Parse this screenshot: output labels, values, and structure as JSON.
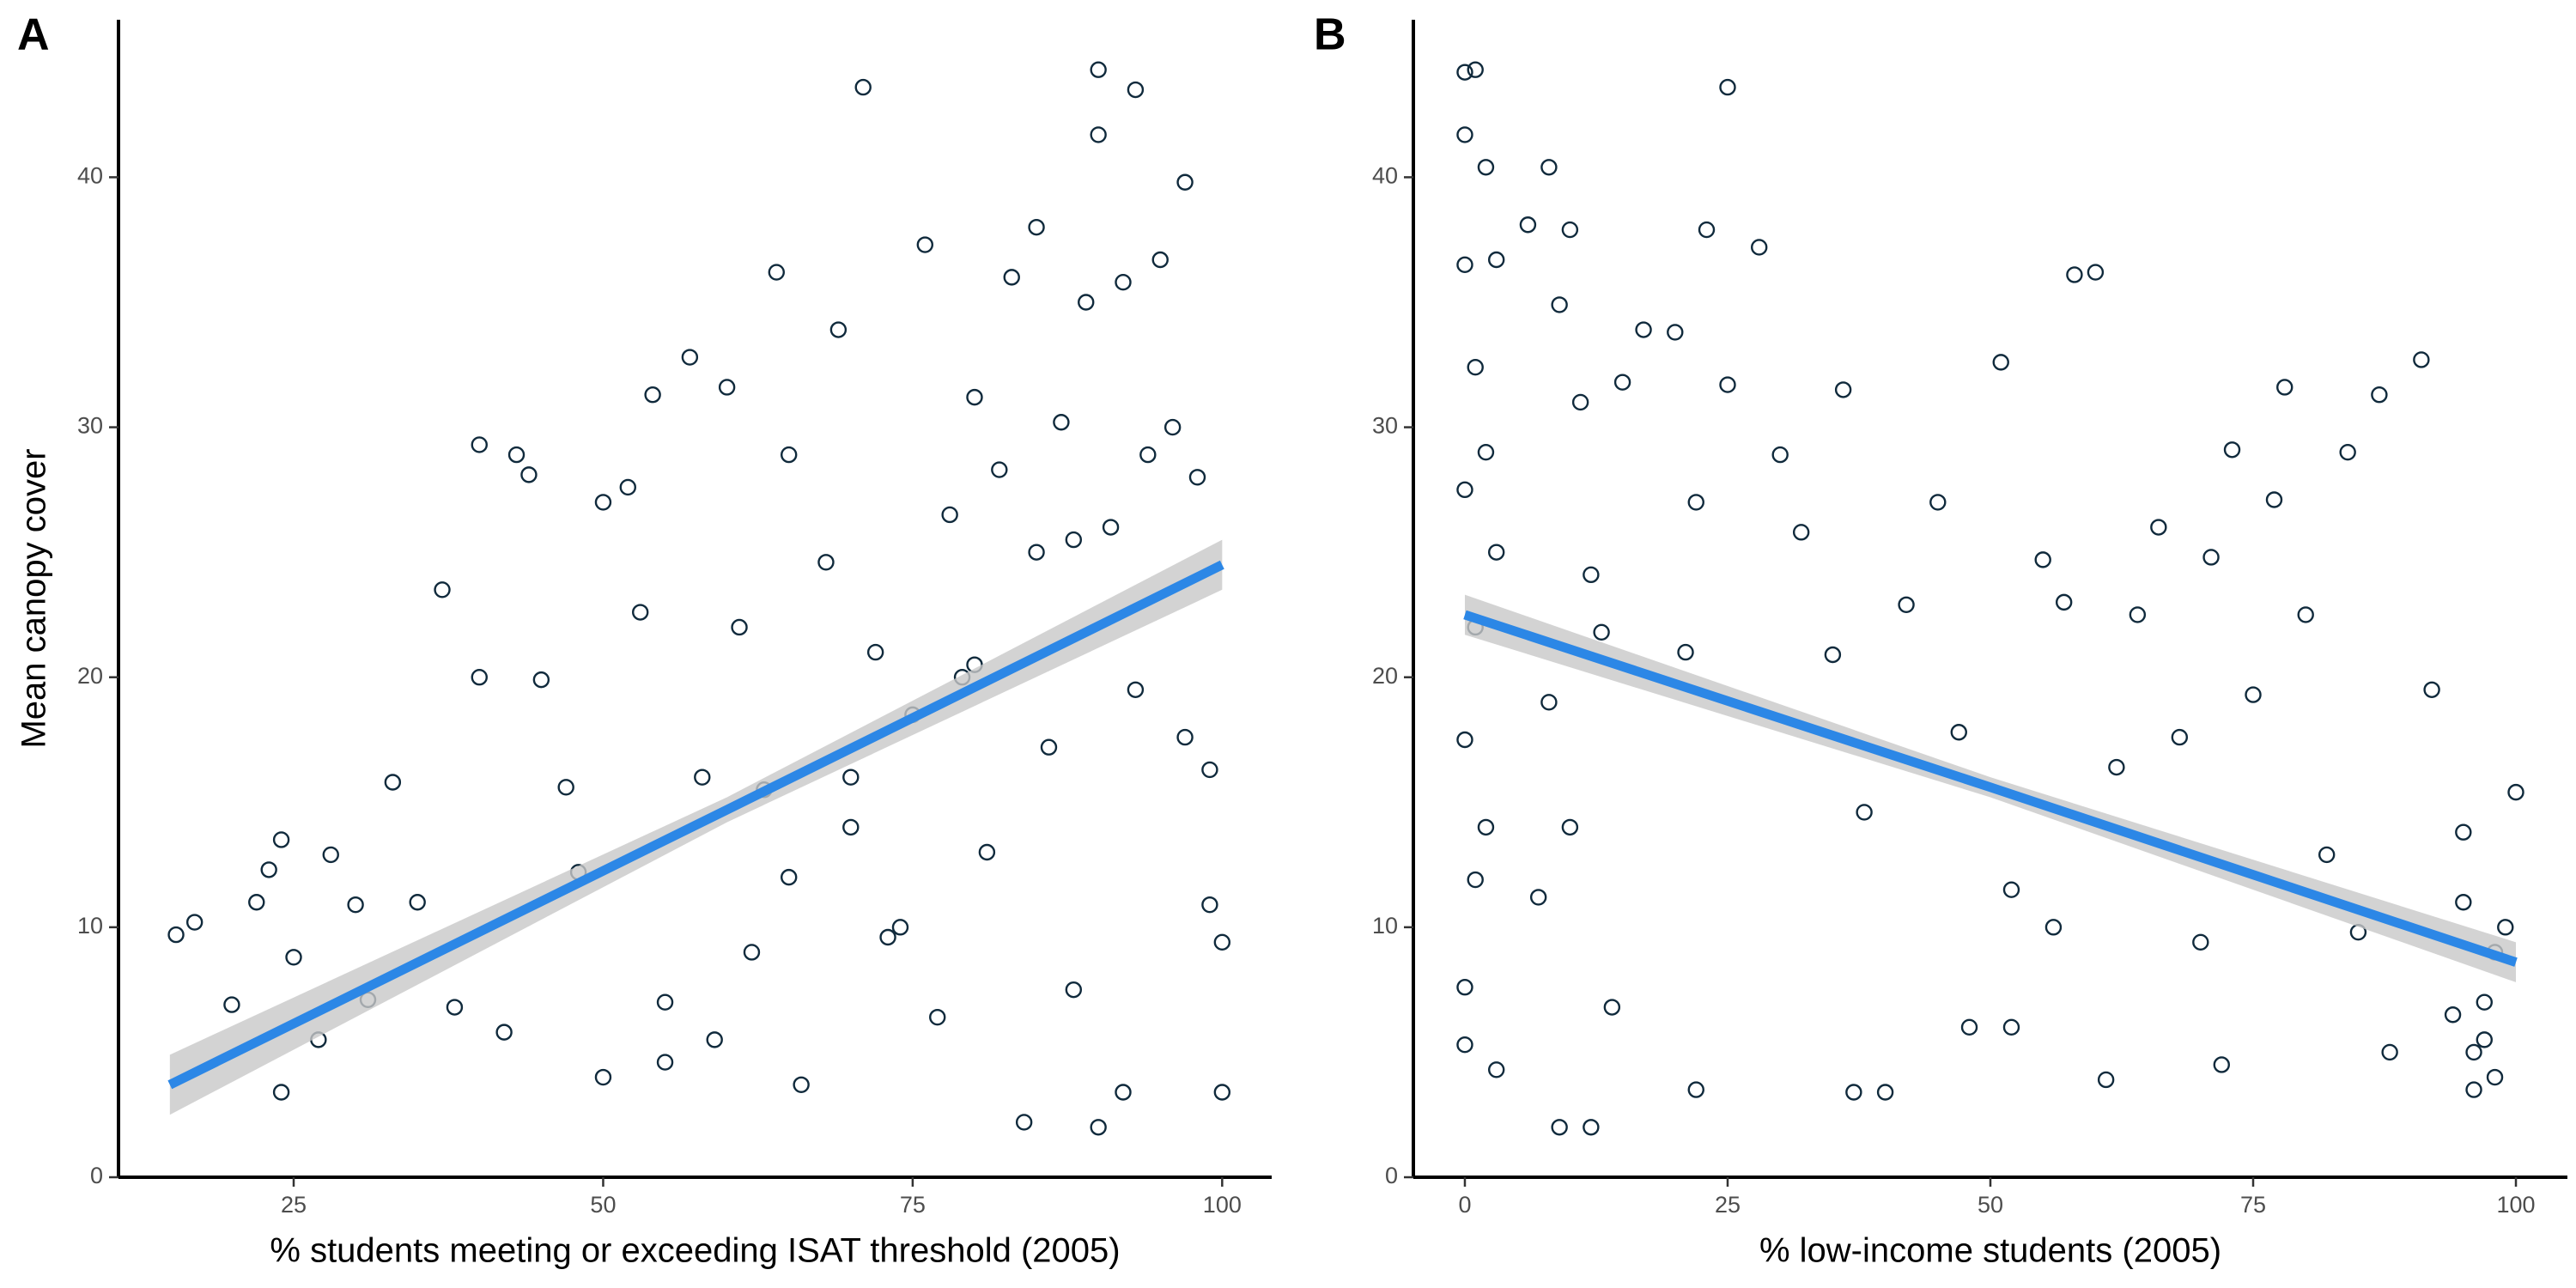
{
  "chart_data": [
    {
      "type": "scatter",
      "panel_label": "A",
      "x_label": "% students meeting or exceeding ISAT threshold (2005)",
      "y_label": "Mean canopy cover",
      "xlim": [
        10.85,
        104
      ],
      "ylim": [
        0,
        46.3
      ],
      "xticks": [
        25,
        50,
        75,
        100
      ],
      "yticks": [
        0,
        10,
        20,
        30,
        40
      ],
      "point_color": "#102a3c",
      "line_color": "#2c87e6",
      "band_color": "#c8c8c8",
      "x": [
        15.5,
        17,
        20,
        22,
        23,
        24,
        24,
        25,
        27,
        28,
        30,
        31,
        33,
        35,
        37,
        38,
        40,
        40,
        42,
        43,
        44,
        45,
        47,
        48,
        50,
        52,
        53,
        54,
        55,
        57,
        58,
        59,
        60,
        61,
        62,
        63,
        64,
        65,
        66,
        68,
        69,
        70,
        71,
        72,
        73,
        75,
        76,
        77,
        78,
        79,
        80,
        81,
        82,
        83,
        84,
        85,
        86,
        87,
        88,
        88,
        89,
        90,
        90,
        90,
        91,
        92,
        92,
        93,
        93,
        94,
        95,
        96,
        97,
        97,
        98,
        99,
        99,
        100,
        100,
        70,
        74,
        80,
        85,
        65,
        55,
        50
      ],
      "y": [
        9.7,
        10.2,
        6.9,
        11,
        12.3,
        13.5,
        3.4,
        8.8,
        5.5,
        12.9,
        10.9,
        7.1,
        15.8,
        11,
        23.5,
        6.8,
        29.3,
        20,
        5.8,
        28.9,
        28.1,
        19.9,
        15.6,
        12.2,
        27,
        27.6,
        22.6,
        31.3,
        4.6,
        32.8,
        16,
        5.5,
        31.6,
        22,
        9,
        15.5,
        36.2,
        28.9,
        3.7,
        24.6,
        33.9,
        14,
        43.6,
        21,
        9.6,
        18.5,
        37.3,
        6.4,
        26.5,
        20,
        31.2,
        13,
        28.3,
        36,
        2.2,
        38,
        17.2,
        30.2,
        25.5,
        7.5,
        35,
        44.3,
        2,
        41.7,
        26,
        3.4,
        35.8,
        43.5,
        19.5,
        28.9,
        36.7,
        30,
        39.8,
        17.6,
        28,
        16.3,
        10.9,
        9.4,
        3.4,
        16,
        10,
        20.5,
        25,
        12,
        7,
        4
      ],
      "trend": {
        "x": [
          15,
          60,
          100
        ],
        "y": [
          3.7,
          14.7,
          24.5
        ],
        "ci_low": [
          2.5,
          14.2,
          23.5
        ],
        "ci_high": [
          4.9,
          15.2,
          25.5
        ]
      }
    },
    {
      "type": "scatter",
      "panel_label": "B",
      "x_label": "% low-income students (2005)",
      "xlim": [
        -4.9,
        104.9
      ],
      "ylim": [
        0,
        46.3
      ],
      "xticks": [
        0,
        25,
        50,
        75,
        100
      ],
      "yticks": [
        0,
        10,
        20,
        30,
        40
      ],
      "point_color": "#102a3c",
      "line_color": "#2c87e6",
      "band_color": "#c8c8c8",
      "x": [
        0,
        1,
        0,
        2,
        3,
        0,
        1,
        2,
        0,
        3,
        1,
        0,
        2,
        1,
        0,
        3,
        0,
        6,
        8,
        9,
        10,
        11,
        12,
        13,
        15,
        8,
        10,
        7,
        9,
        12,
        14,
        17,
        20,
        22,
        23,
        25,
        25,
        28,
        22,
        21,
        30,
        32,
        35,
        36,
        37,
        40,
        38,
        42,
        45,
        47,
        48,
        52,
        51,
        52,
        55,
        56,
        58,
        60,
        57,
        62,
        64,
        66,
        61,
        68,
        70,
        71,
        72,
        73,
        75,
        77,
        78,
        80,
        82,
        84,
        85,
        87,
        88,
        91,
        92,
        95,
        96,
        97,
        98,
        99,
        100,
        96,
        94,
        98,
        97,
        95
      ],
      "y": [
        44.2,
        44.3,
        41.7,
        40.4,
        36.7,
        36.5,
        32.4,
        29,
        27.5,
        25,
        22,
        17.5,
        14,
        11.9,
        7.6,
        4.3,
        5.3,
        38.1,
        40.4,
        34.9,
        37.9,
        31,
        24.1,
        21.8,
        31.8,
        19,
        14,
        11.2,
        2,
        2,
        6.8,
        33.9,
        33.8,
        27,
        37.9,
        43.6,
        31.7,
        37.2,
        3.5,
        21,
        28.9,
        25.8,
        20.9,
        31.5,
        3.4,
        3.4,
        14.6,
        22.9,
        27,
        17.8,
        6,
        6,
        32.6,
        11.5,
        24.7,
        10,
        36.1,
        36.2,
        23,
        16.4,
        22.5,
        26,
        3.9,
        17.6,
        9.4,
        24.8,
        4.5,
        29.1,
        19.3,
        27.1,
        31.6,
        22.5,
        12.9,
        29,
        9.8,
        31.3,
        5,
        32.7,
        19.5,
        13.8,
        5,
        7,
        4,
        10,
        15.4,
        3.5,
        6.5,
        9,
        5.5,
        11
      ],
      "trend": {
        "x": [
          0,
          50,
          100
        ],
        "y": [
          22.5,
          15.6,
          8.6
        ],
        "ci_low": [
          21.7,
          15.2,
          7.8
        ],
        "ci_high": [
          23.3,
          16.0,
          9.4
        ]
      }
    }
  ]
}
